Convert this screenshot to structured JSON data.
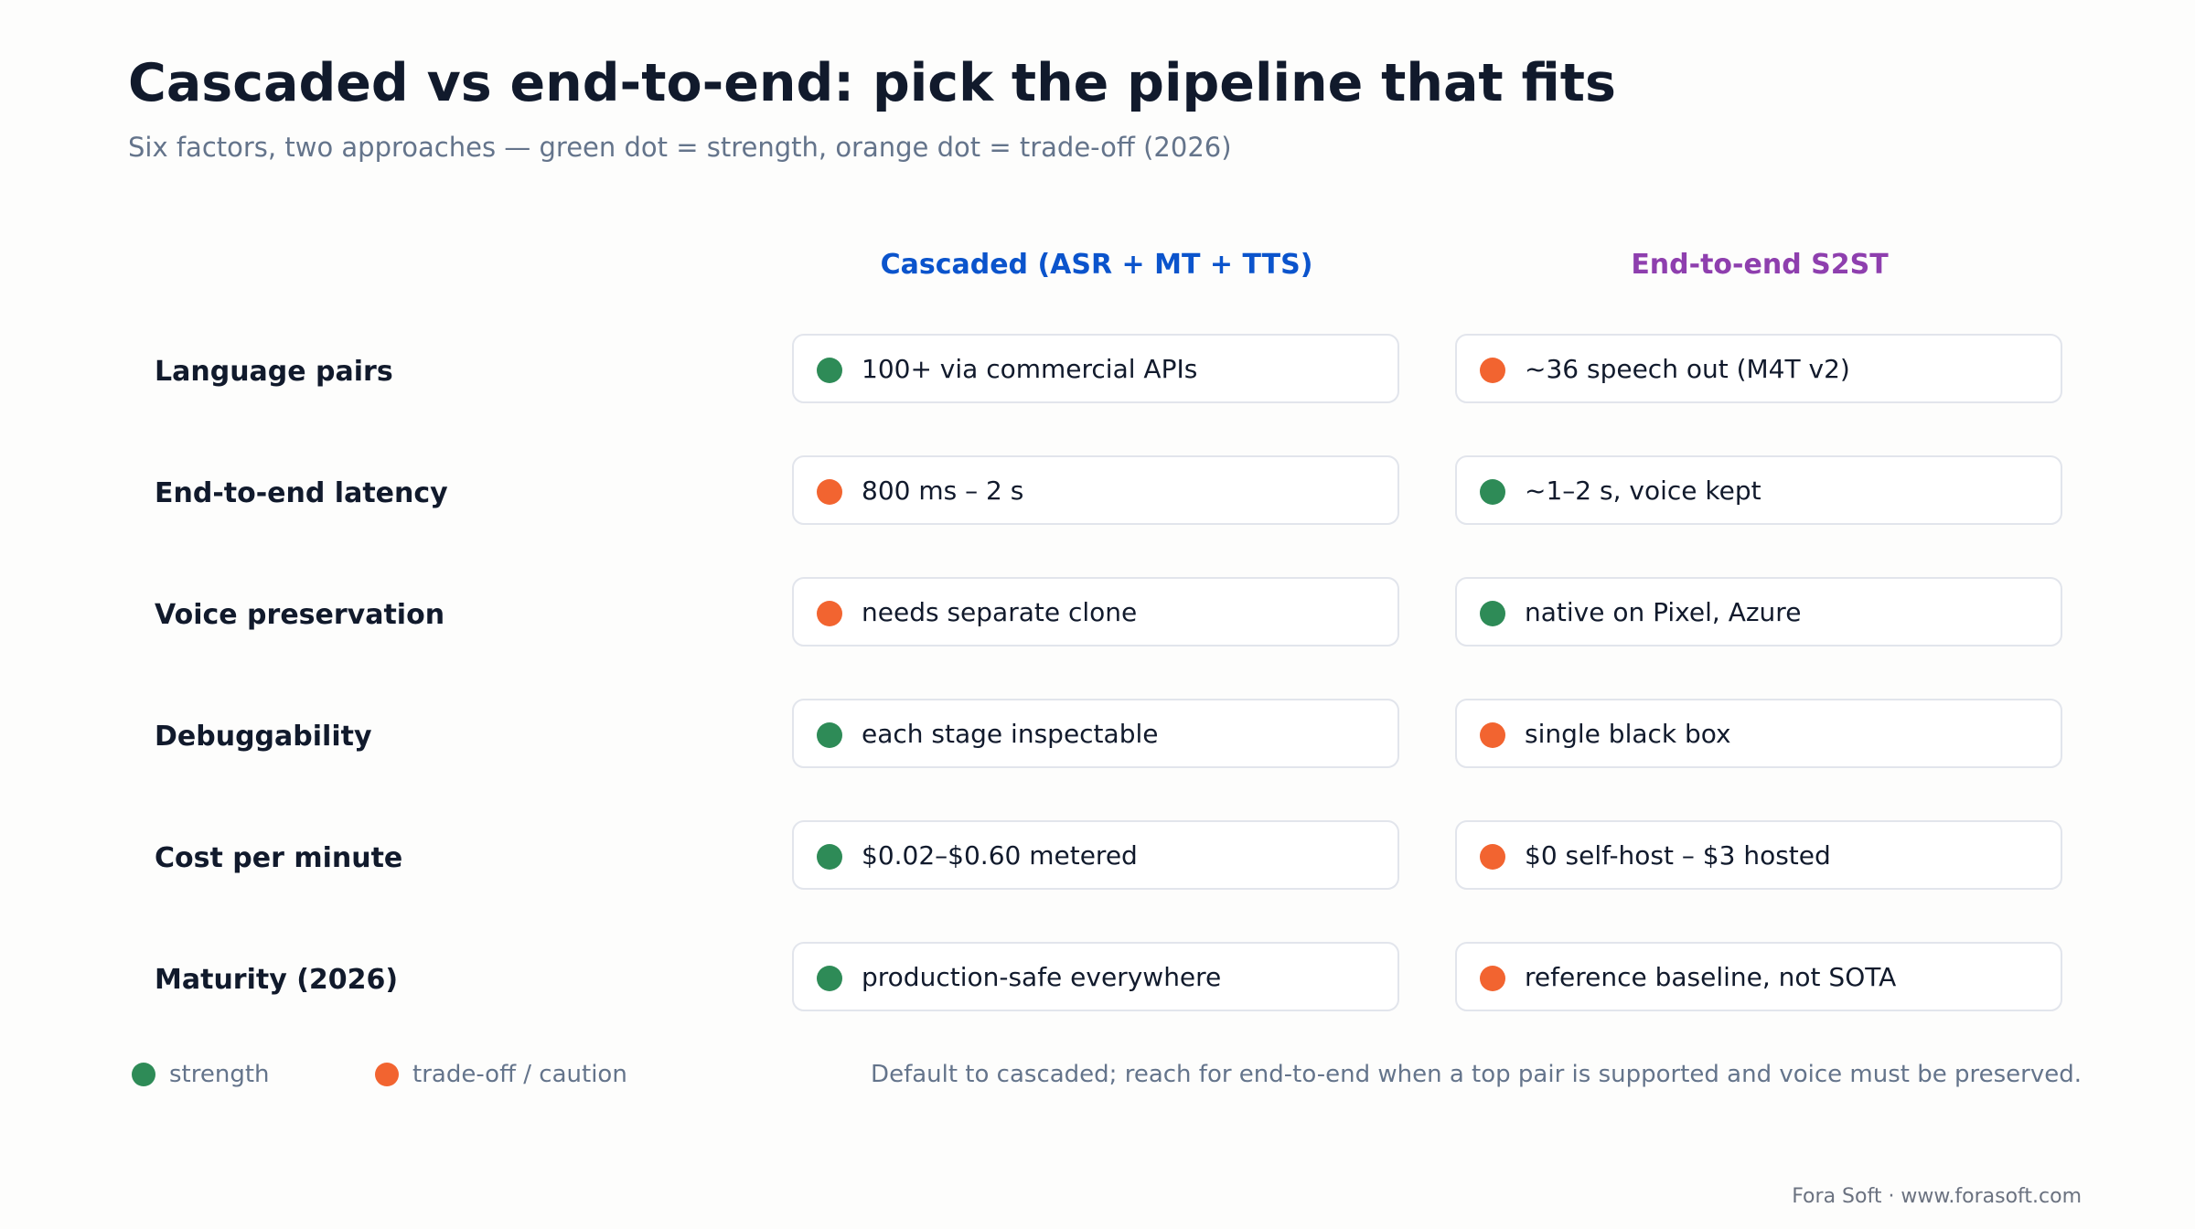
{
  "title": "Cascaded vs end-to-end: pick the pipeline that fits",
  "subtitle": "Six factors, two approaches — green dot = strength, orange dot = trade-off (2026)",
  "colors": {
    "strength": "#2e8b57",
    "tradeoff": "#f26430",
    "cascaded_header": "#0b54cc",
    "e2e_header": "#8e3fae"
  },
  "columns": {
    "cascaded": "Cascaded (ASR + MT + TTS)",
    "e2e": "End-to-end S2ST"
  },
  "rows": [
    {
      "factor": "Language pairs",
      "cascaded": {
        "text": "100+ via commercial APIs",
        "status": "strength"
      },
      "e2e": {
        "text": "~36 speech out (M4T v2)",
        "status": "tradeoff"
      }
    },
    {
      "factor": "End-to-end latency",
      "cascaded": {
        "text": "800 ms – 2 s",
        "status": "tradeoff"
      },
      "e2e": {
        "text": "~1–2 s, voice kept",
        "status": "strength"
      }
    },
    {
      "factor": "Voice preservation",
      "cascaded": {
        "text": "needs separate clone",
        "status": "tradeoff"
      },
      "e2e": {
        "text": "native on Pixel, Azure",
        "status": "strength"
      }
    },
    {
      "factor": "Debuggability",
      "cascaded": {
        "text": "each stage inspectable",
        "status": "strength"
      },
      "e2e": {
        "text": "single black box",
        "status": "tradeoff"
      }
    },
    {
      "factor": "Cost per minute",
      "cascaded": {
        "text": "$0.02–$0.60 metered",
        "status": "strength"
      },
      "e2e": {
        "text": "$0 self-host – $3 hosted",
        "status": "tradeoff"
      }
    },
    {
      "factor": "Maturity (2026)",
      "cascaded": {
        "text": "production-safe everywhere",
        "status": "strength"
      },
      "e2e": {
        "text": "reference baseline, not SOTA",
        "status": "tradeoff"
      }
    }
  ],
  "legend": {
    "strength": "strength",
    "tradeoff": "trade-off / caution"
  },
  "note": "Default to cascaded; reach for end-to-end when a top pair is supported and voice must be preserved.",
  "credit": "Fora Soft · www.forasoft.com"
}
